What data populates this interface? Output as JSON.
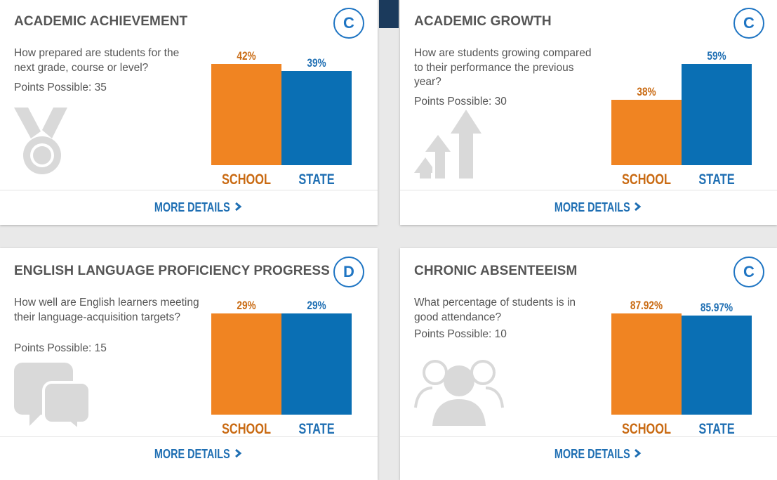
{
  "colors": {
    "school": "#f08422",
    "state": "#0a6fb4",
    "accent": "#1f75c3"
  },
  "cards": [
    {
      "title": "ACADEMIC ACHIEVEMENT",
      "grade": "C",
      "question": "How prepared are students for the next grade, course or level?",
      "points": "Points Possible: 35",
      "icon": "medal-icon",
      "chart_data": {
        "type": "bar",
        "categories": [
          "SCHOOL",
          "STATE"
        ],
        "values": [
          42,
          39
        ],
        "value_labels": [
          "42%",
          "39%"
        ]
      },
      "more": "MORE DETAILS"
    },
    {
      "title": "ACADEMIC GROWTH",
      "grade": "C",
      "question": "How are students growing compared to their performance the previous year?",
      "points": "Points Possible: 30",
      "icon": "growth-arrows-icon",
      "chart_data": {
        "type": "bar",
        "categories": [
          "SCHOOL",
          "STATE"
        ],
        "values": [
          38,
          59
        ],
        "value_labels": [
          "38%",
          "59%"
        ]
      },
      "more": "MORE DETAILS"
    },
    {
      "title": "ENGLISH LANGUAGE PROFICIENCY PROGRESS",
      "grade": "D",
      "question": "How well are English learners meeting their language-acquisition targets?",
      "points": "Points Possible: 15",
      "icon": "speech-bubbles-icon",
      "chart_data": {
        "type": "bar",
        "categories": [
          "SCHOOL",
          "STATE"
        ],
        "values": [
          29,
          29
        ],
        "value_labels": [
          "29%",
          "29%"
        ]
      },
      "more": "MORE DETAILS"
    },
    {
      "title": "CHRONIC ABSENTEEISM",
      "grade": "C",
      "question": "What percentage of students is in good attendance?",
      "points": "Points Possible: 10",
      "icon": "people-group-icon",
      "chart_data": {
        "type": "bar",
        "categories": [
          "SCHOOL",
          "STATE"
        ],
        "values": [
          87.92,
          85.97
        ],
        "value_labels": [
          "87.92%",
          "85.97%"
        ]
      },
      "more": "MORE DETAILS"
    }
  ]
}
